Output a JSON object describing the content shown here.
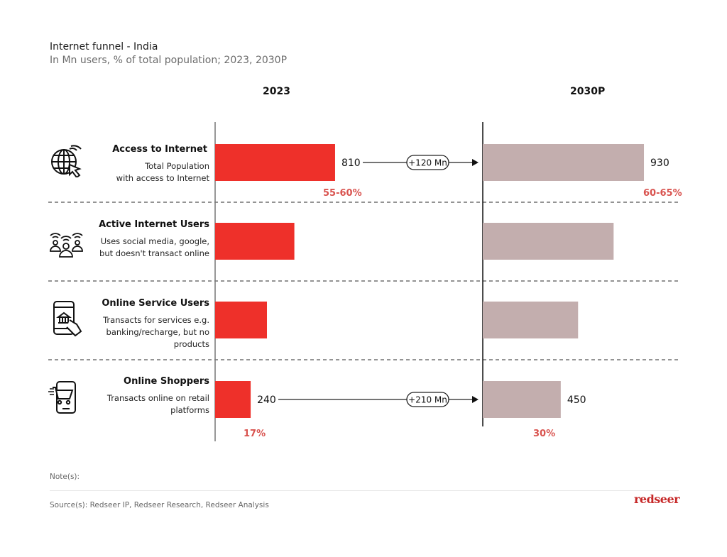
{
  "header": {
    "title": "Internet funnel - India",
    "subtitle": "In Mn users, % of total population; 2023, 2030P"
  },
  "chart_data": {
    "type": "bar",
    "title": "Internet funnel - India",
    "subtitle": "In Mn users, % of total population; 2023, 2030P",
    "xlabel": "",
    "ylabel": "",
    "categories": [
      "Access to Internet",
      "Active Internet Users",
      "Online Service Users",
      "Online Shoppers"
    ],
    "category_descriptions": [
      "Total Population with access to Internet",
      "Uses social media, google, but doesn't transact online",
      "Transacts for services e.g. banking/recharge, but no products",
      "Transacts online on retail platforms"
    ],
    "series": [
      {
        "name": "2023",
        "color": "#ee302a",
        "values": [
          810,
          535,
          350,
          240
        ],
        "value_labels": [
          "810",
          "",
          "",
          "240"
        ],
        "percent_labels": [
          "55-60%",
          "",
          "",
          "17%"
        ]
      },
      {
        "name": "2030P",
        "color": "#c3aeae",
        "values": [
          930,
          755,
          550,
          450
        ],
        "value_labels": [
          "930",
          "",
          "",
          "450"
        ],
        "percent_labels": [
          "60-65%",
          "",
          "",
          "30%"
        ]
      }
    ],
    "annotations": [
      {
        "category": "Access to Internet",
        "text": "+120 Mn"
      },
      {
        "category": "Online Shoppers",
        "text": "+210 Mn"
      }
    ],
    "grid": false,
    "legend": "none"
  },
  "rows": [
    {
      "title": "Access to Internet",
      "desc": [
        "Total Population",
        "with access to Internet"
      ],
      "icon": "globe-cursor-icon"
    },
    {
      "title": "Active Internet Users",
      "desc": [
        "Uses social media, google,",
        "but doesn't transact online"
      ],
      "icon": "users-wifi-icon"
    },
    {
      "title": "Online Service Users",
      "desc": [
        "Transacts for services e.g.",
        "banking/recharge, but no",
        "products"
      ],
      "icon": "phone-bank-icon"
    },
    {
      "title": "Online Shoppers",
      "desc": [
        "Transacts online on retail",
        "platforms"
      ],
      "icon": "phone-cart-icon"
    }
  ],
  "footer": {
    "note": "Note(s):",
    "source": "Source(s): Redseer IP, Redseer Research, Redseer Analysis",
    "logo": "redseer"
  },
  "colors": {
    "bar_2023": "#ee302a",
    "bar_2030": "#c3aeae",
    "percent_text": "#d9534f",
    "logo": "#c62828"
  }
}
